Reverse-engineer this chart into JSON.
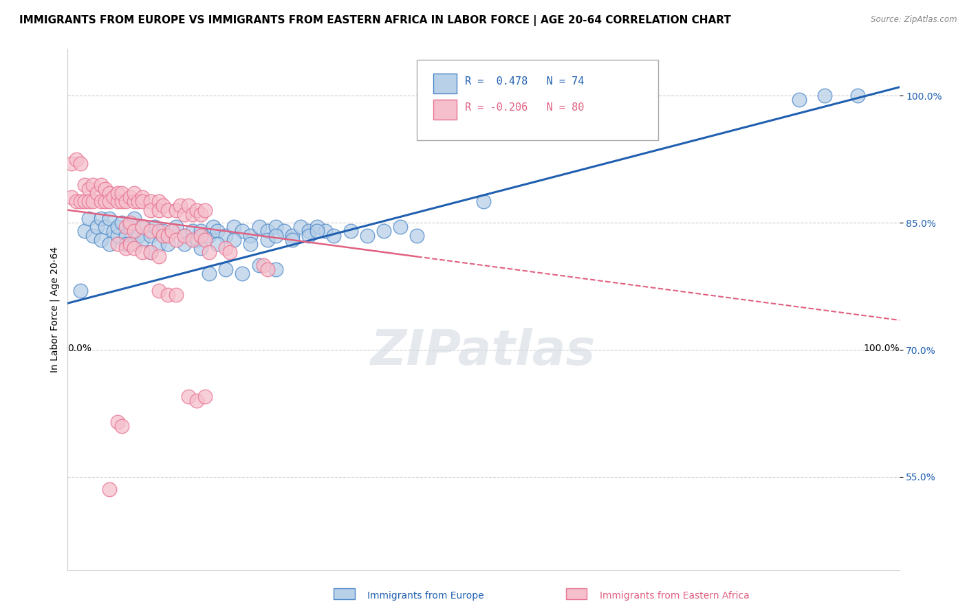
{
  "title": "IMMIGRANTS FROM EUROPE VS IMMIGRANTS FROM EASTERN AFRICA IN LABOR FORCE | AGE 20-64 CORRELATION CHART",
  "source": "Source: ZipAtlas.com",
  "ylabel": "In Labor Force | Age 20-64",
  "xlim": [
    0.0,
    1.0
  ],
  "ylim": [
    0.44,
    1.055
  ],
  "yticks": [
    0.55,
    0.7,
    0.85,
    1.0
  ],
  "ytick_labels": [
    "55.0%",
    "70.0%",
    "85.0%",
    "100.0%"
  ],
  "legend_blue_r": "0.478",
  "legend_blue_n": "74",
  "legend_pink_r": "-0.206",
  "legend_pink_n": "80",
  "legend_blue_label": "Immigrants from Europe",
  "legend_pink_label": "Immigrants from Eastern Africa",
  "blue_color": "#b8d0e8",
  "blue_edge_color": "#4a86c8",
  "pink_color": "#f5c0cc",
  "pink_edge_color": "#e87090",
  "blue_line_color": "#2060b0",
  "pink_line_color": "#e06080",
  "background_color": "#ffffff",
  "grid_color": "#cccccc",
  "watermark": "ZIPatlas",
  "title_fontsize": 11,
  "axis_fontsize": 10,
  "tick_fontsize": 10,
  "blue_scatter": [
    [
      0.02,
      0.84
    ],
    [
      0.025,
      0.855
    ],
    [
      0.03,
      0.835
    ],
    [
      0.035,
      0.845
    ],
    [
      0.04,
      0.855
    ],
    [
      0.04,
      0.83
    ],
    [
      0.045,
      0.845
    ],
    [
      0.05,
      0.855
    ],
    [
      0.05,
      0.825
    ],
    [
      0.055,
      0.84
    ],
    [
      0.06,
      0.835
    ],
    [
      0.06,
      0.845
    ],
    [
      0.065,
      0.85
    ],
    [
      0.07,
      0.835
    ],
    [
      0.07,
      0.825
    ],
    [
      0.075,
      0.845
    ],
    [
      0.08,
      0.855
    ],
    [
      0.08,
      0.825
    ],
    [
      0.085,
      0.835
    ],
    [
      0.09,
      0.845
    ],
    [
      0.09,
      0.83
    ],
    [
      0.1,
      0.835
    ],
    [
      0.1,
      0.815
    ],
    [
      0.105,
      0.845
    ],
    [
      0.11,
      0.825
    ],
    [
      0.115,
      0.84
    ],
    [
      0.12,
      0.835
    ],
    [
      0.13,
      0.845
    ],
    [
      0.14,
      0.835
    ],
    [
      0.15,
      0.84
    ],
    [
      0.155,
      0.83
    ],
    [
      0.16,
      0.84
    ],
    [
      0.17,
      0.835
    ],
    [
      0.175,
      0.845
    ],
    [
      0.18,
      0.84
    ],
    [
      0.19,
      0.835
    ],
    [
      0.2,
      0.845
    ],
    [
      0.21,
      0.84
    ],
    [
      0.22,
      0.835
    ],
    [
      0.23,
      0.845
    ],
    [
      0.24,
      0.84
    ],
    [
      0.25,
      0.845
    ],
    [
      0.26,
      0.84
    ],
    [
      0.27,
      0.835
    ],
    [
      0.28,
      0.845
    ],
    [
      0.29,
      0.84
    ],
    [
      0.3,
      0.845
    ],
    [
      0.31,
      0.84
    ],
    [
      0.12,
      0.825
    ],
    [
      0.14,
      0.825
    ],
    [
      0.16,
      0.82
    ],
    [
      0.18,
      0.825
    ],
    [
      0.2,
      0.83
    ],
    [
      0.22,
      0.825
    ],
    [
      0.24,
      0.83
    ],
    [
      0.25,
      0.835
    ],
    [
      0.27,
      0.83
    ],
    [
      0.29,
      0.835
    ],
    [
      0.3,
      0.84
    ],
    [
      0.32,
      0.835
    ],
    [
      0.34,
      0.84
    ],
    [
      0.36,
      0.835
    ],
    [
      0.38,
      0.84
    ],
    [
      0.4,
      0.845
    ],
    [
      0.42,
      0.835
    ],
    [
      0.17,
      0.79
    ],
    [
      0.19,
      0.795
    ],
    [
      0.21,
      0.79
    ],
    [
      0.23,
      0.8
    ],
    [
      0.25,
      0.795
    ],
    [
      0.5,
      0.875
    ],
    [
      0.015,
      0.77
    ],
    [
      0.88,
      0.995
    ],
    [
      0.91,
      1.0
    ],
    [
      0.95,
      1.0
    ]
  ],
  "pink_scatter": [
    [
      0.005,
      0.92
    ],
    [
      0.01,
      0.925
    ],
    [
      0.015,
      0.92
    ],
    [
      0.005,
      0.88
    ],
    [
      0.01,
      0.875
    ],
    [
      0.015,
      0.875
    ],
    [
      0.02,
      0.895
    ],
    [
      0.02,
      0.875
    ],
    [
      0.025,
      0.89
    ],
    [
      0.025,
      0.875
    ],
    [
      0.03,
      0.895
    ],
    [
      0.03,
      0.875
    ],
    [
      0.035,
      0.885
    ],
    [
      0.04,
      0.895
    ],
    [
      0.04,
      0.875
    ],
    [
      0.045,
      0.89
    ],
    [
      0.045,
      0.875
    ],
    [
      0.05,
      0.885
    ],
    [
      0.05,
      0.875
    ],
    [
      0.055,
      0.88
    ],
    [
      0.06,
      0.875
    ],
    [
      0.06,
      0.885
    ],
    [
      0.065,
      0.875
    ],
    [
      0.065,
      0.885
    ],
    [
      0.07,
      0.875
    ],
    [
      0.075,
      0.88
    ],
    [
      0.08,
      0.875
    ],
    [
      0.08,
      0.885
    ],
    [
      0.085,
      0.875
    ],
    [
      0.09,
      0.88
    ],
    [
      0.09,
      0.875
    ],
    [
      0.1,
      0.875
    ],
    [
      0.1,
      0.865
    ],
    [
      0.11,
      0.875
    ],
    [
      0.11,
      0.865
    ],
    [
      0.115,
      0.87
    ],
    [
      0.12,
      0.865
    ],
    [
      0.13,
      0.865
    ],
    [
      0.135,
      0.87
    ],
    [
      0.14,
      0.86
    ],
    [
      0.145,
      0.87
    ],
    [
      0.15,
      0.86
    ],
    [
      0.155,
      0.865
    ],
    [
      0.16,
      0.86
    ],
    [
      0.165,
      0.865
    ],
    [
      0.07,
      0.845
    ],
    [
      0.075,
      0.85
    ],
    [
      0.08,
      0.84
    ],
    [
      0.09,
      0.845
    ],
    [
      0.1,
      0.84
    ],
    [
      0.11,
      0.84
    ],
    [
      0.115,
      0.835
    ],
    [
      0.12,
      0.835
    ],
    [
      0.125,
      0.84
    ],
    [
      0.13,
      0.83
    ],
    [
      0.14,
      0.835
    ],
    [
      0.15,
      0.83
    ],
    [
      0.16,
      0.835
    ],
    [
      0.165,
      0.83
    ],
    [
      0.06,
      0.825
    ],
    [
      0.07,
      0.82
    ],
    [
      0.075,
      0.825
    ],
    [
      0.08,
      0.82
    ],
    [
      0.09,
      0.815
    ],
    [
      0.1,
      0.815
    ],
    [
      0.11,
      0.81
    ],
    [
      0.17,
      0.815
    ],
    [
      0.19,
      0.82
    ],
    [
      0.195,
      0.815
    ],
    [
      0.235,
      0.8
    ],
    [
      0.24,
      0.795
    ],
    [
      0.11,
      0.77
    ],
    [
      0.12,
      0.765
    ],
    [
      0.13,
      0.765
    ],
    [
      0.145,
      0.645
    ],
    [
      0.155,
      0.64
    ],
    [
      0.165,
      0.645
    ],
    [
      0.06,
      0.615
    ],
    [
      0.065,
      0.61
    ],
    [
      0.05,
      0.535
    ]
  ]
}
